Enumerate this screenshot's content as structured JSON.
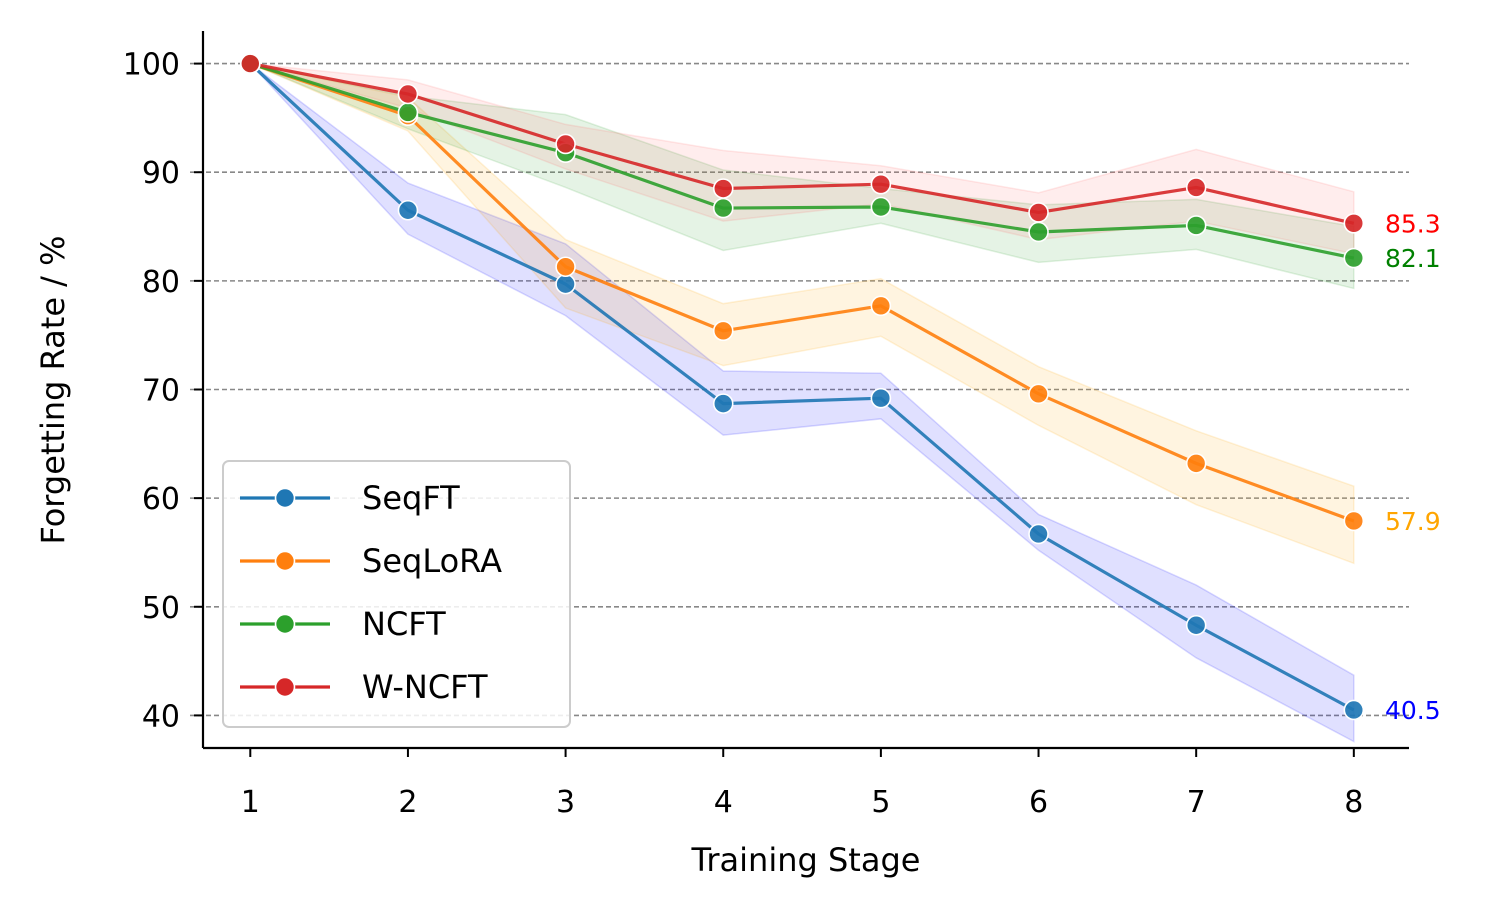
{
  "chart_data": {
    "type": "line",
    "xlabel": "Training Stage",
    "ylabel": "Forgetting Rate / %",
    "x": [
      1,
      2,
      3,
      4,
      5,
      6,
      7,
      8
    ],
    "xlim": [
      0.7,
      8.35
    ],
    "ylim": [
      37,
      103
    ],
    "yticks": [
      40,
      50,
      60,
      70,
      80,
      90,
      100
    ],
    "grid": "horizontal dashed",
    "legend_position": "lower-left",
    "series": [
      {
        "name": "SeqFT",
        "color": "#1f77b4",
        "band_color": "#0000ff",
        "values": [
          100,
          86.5,
          79.7,
          68.7,
          69.2,
          56.7,
          48.3,
          40.5
        ],
        "lower": [
          100,
          84.3,
          76.8,
          65.8,
          67.3,
          55.2,
          45.3,
          37.6
        ],
        "upper": [
          100,
          89.0,
          83.4,
          71.7,
          71.5,
          58.5,
          52.0,
          43.7
        ],
        "end_label": "40.5",
        "end_label_color": "#0000ff"
      },
      {
        "name": "SeqLoRA",
        "color": "#ff7f0e",
        "band_color": "#ffa500",
        "values": [
          100,
          95.2,
          81.3,
          75.4,
          77.7,
          69.6,
          63.2,
          57.9
        ],
        "lower": [
          100,
          93.8,
          77.5,
          72.2,
          74.9,
          66.7,
          59.4,
          54.0
        ],
        "upper": [
          100,
          96.9,
          83.8,
          77.9,
          80.2,
          72.1,
          66.2,
          61.1
        ],
        "end_label": "57.9",
        "end_label_color": "#ffa500"
      },
      {
        "name": "NCFT",
        "color": "#2ca02c",
        "band_color": "#2ca02c",
        "values": [
          100,
          95.5,
          91.8,
          86.7,
          86.8,
          84.5,
          85.1,
          82.1
        ],
        "lower": [
          100,
          94.0,
          88.6,
          82.8,
          85.3,
          81.7,
          82.9,
          79.3
        ],
        "upper": [
          100,
          97.0,
          95.3,
          90.2,
          88.5,
          87.0,
          87.5,
          85.0
        ],
        "end_label": "82.1",
        "end_label_color": "#008000"
      },
      {
        "name": "W-NCFT",
        "color": "#d62728",
        "band_color": "#ff6b6b",
        "values": [
          100,
          97.2,
          92.6,
          88.5,
          88.9,
          86.3,
          88.6,
          85.3
        ],
        "lower": [
          100,
          95.9,
          90.3,
          85.5,
          87.1,
          83.8,
          85.5,
          82.5
        ],
        "upper": [
          100,
          98.5,
          94.4,
          92.0,
          90.6,
          88.1,
          92.1,
          88.2
        ],
        "end_label": "85.3",
        "end_label_color": "#ff0000"
      }
    ]
  }
}
